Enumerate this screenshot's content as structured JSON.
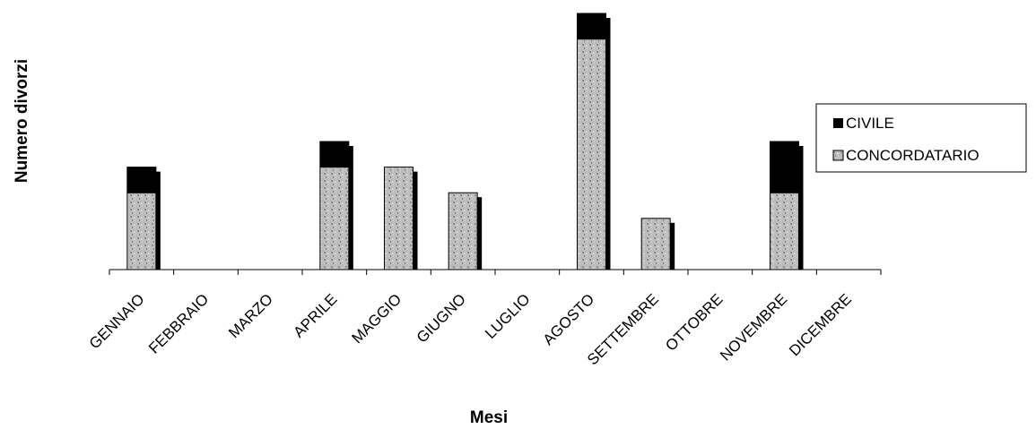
{
  "chart_data": {
    "type": "bar",
    "stacked": true,
    "title": "",
    "xlabel": "Mesi",
    "ylabel": "Numero divorzi",
    "categories": [
      "GENNAIO",
      "FEBBRAIO",
      "MARZO",
      "APRILE",
      "MAGGIO",
      "GIUGNO",
      "LUGLIO",
      "AGOSTO",
      "SETTEMBRE",
      "OTTOBRE",
      "NOVEMBRE",
      "DICEMBRE"
    ],
    "series": [
      {
        "name": "CONCORDATARIO",
        "values": [
          3,
          0,
          0,
          4,
          4,
          3,
          0,
          9,
          2,
          0,
          3,
          0
        ],
        "color": "#b8b8b8"
      },
      {
        "name": "CIVILE",
        "values": [
          1,
          0,
          0,
          1,
          0,
          0,
          0,
          1,
          0,
          0,
          2,
          0
        ],
        "color": "#000000"
      }
    ],
    "ylim": [
      0,
      10
    ],
    "grid": false,
    "legend": "right"
  }
}
